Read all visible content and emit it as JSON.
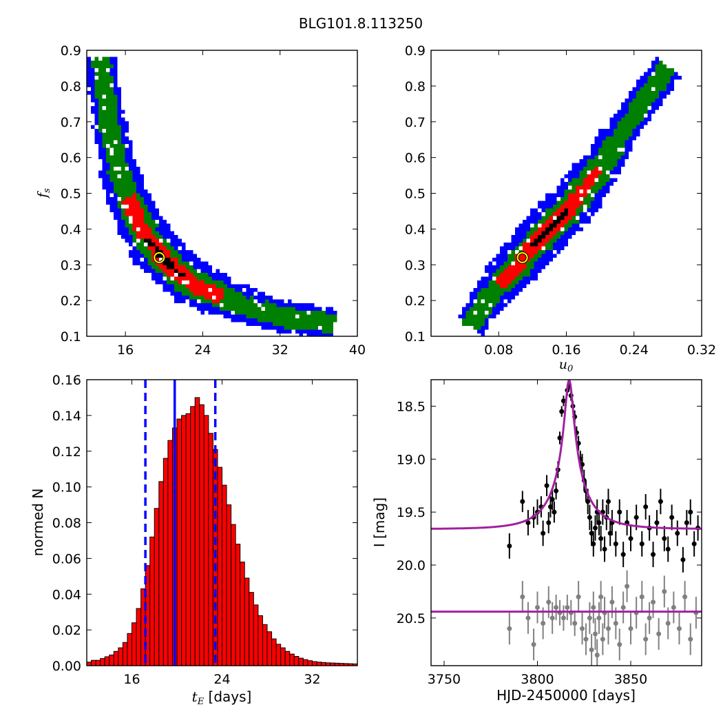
{
  "figure": {
    "title": "BLG101.8.113250"
  },
  "chart_data": [
    {
      "type": "heatmap",
      "panel": "top-left",
      "xlabel": "",
      "ylabel": "f_s",
      "xlim": [
        12,
        40
      ],
      "ylim": [
        0.1,
        0.9
      ],
      "xticks": [
        16,
        24,
        32,
        40
      ],
      "yticks": [
        0.1,
        0.2,
        0.3,
        0.4,
        0.5,
        0.6,
        0.7,
        0.8,
        0.9
      ],
      "levels": [
        "3-sigma",
        "2-sigma",
        "1-sigma",
        "best"
      ],
      "colors": {
        "outer": "#0000ff",
        "mid": "#008000",
        "inner": "#ff0000",
        "core": "#000000",
        "marker": "#ffff00"
      },
      "best_fit": {
        "x": 19.5,
        "y": 0.32
      },
      "ridge": [
        [
          13.2,
          0.88
        ],
        [
          14,
          0.72
        ],
        [
          15,
          0.58
        ],
        [
          16,
          0.49
        ],
        [
          17,
          0.43
        ],
        [
          18,
          0.38
        ],
        [
          19,
          0.345
        ],
        [
          20,
          0.315
        ],
        [
          21,
          0.29
        ],
        [
          22,
          0.268
        ],
        [
          23,
          0.25
        ],
        [
          24,
          0.235
        ],
        [
          26,
          0.212
        ],
        [
          28,
          0.192
        ],
        [
          30,
          0.175
        ],
        [
          32,
          0.162
        ],
        [
          34,
          0.152
        ],
        [
          36,
          0.144
        ],
        [
          37.5,
          0.139
        ]
      ]
    },
    {
      "type": "heatmap",
      "panel": "top-right",
      "xlabel": "u_0",
      "ylabel": "",
      "xlim": [
        0.0,
        0.32
      ],
      "ylim": [
        0.1,
        0.9
      ],
      "xticks": [
        0.08,
        0.16,
        0.24,
        0.32
      ],
      "yticks": [
        0.1,
        0.2,
        0.3,
        0.4,
        0.5,
        0.6,
        0.7,
        0.8,
        0.9
      ],
      "levels": [
        "3-sigma",
        "2-sigma",
        "1-sigma",
        "best"
      ],
      "colors": {
        "outer": "#0000ff",
        "mid": "#008000",
        "inner": "#ff0000",
        "core": "#000000",
        "marker": "#ffff00"
      },
      "best_fit": {
        "x": 0.108,
        "y": 0.32
      },
      "ridge": [
        [
          0.045,
          0.135
        ],
        [
          0.06,
          0.19
        ],
        [
          0.08,
          0.25
        ],
        [
          0.1,
          0.3
        ],
        [
          0.12,
          0.36
        ],
        [
          0.14,
          0.41
        ],
        [
          0.16,
          0.46
        ],
        [
          0.18,
          0.52
        ],
        [
          0.2,
          0.58
        ],
        [
          0.22,
          0.66
        ],
        [
          0.24,
          0.73
        ],
        [
          0.26,
          0.8
        ],
        [
          0.28,
          0.86
        ]
      ]
    },
    {
      "type": "bar",
      "panel": "bottom-left",
      "xlabel": "t_E [days]",
      "ylabel": "normed N",
      "xlim": [
        12,
        36
      ],
      "ylim": [
        0,
        0.16
      ],
      "xticks": [
        16,
        24,
        32
      ],
      "yticks": [
        0.0,
        0.02,
        0.04,
        0.06,
        0.08,
        0.1,
        0.12,
        0.14,
        0.16
      ],
      "bar_color": "#ff0000",
      "bin_width": 0.4,
      "bin_start": 12,
      "values": [
        0.002,
        0.003,
        0.003,
        0.004,
        0.005,
        0.006,
        0.008,
        0.01,
        0.013,
        0.018,
        0.024,
        0.032,
        0.043,
        0.056,
        0.072,
        0.088,
        0.103,
        0.116,
        0.126,
        0.133,
        0.138,
        0.14,
        0.141,
        0.145,
        0.15,
        0.146,
        0.14,
        0.13,
        0.121,
        0.111,
        0.101,
        0.09,
        0.079,
        0.068,
        0.058,
        0.049,
        0.041,
        0.034,
        0.028,
        0.023,
        0.019,
        0.015,
        0.012,
        0.01,
        0.008,
        0.0065,
        0.0052,
        0.0042,
        0.0034,
        0.0028,
        0.0023,
        0.002,
        0.0018,
        0.0016,
        0.0015,
        0.0014,
        0.0013,
        0.0012,
        0.0011,
        0.001
      ],
      "vlines": [
        {
          "x": 19.8,
          "style": "solid",
          "color": "#0000ff"
        },
        {
          "x": 17.2,
          "style": "dashed",
          "color": "#0000ff"
        },
        {
          "x": 23.4,
          "style": "dashed",
          "color": "#0000ff"
        }
      ]
    },
    {
      "type": "scatter",
      "panel": "bottom-right",
      "xlabel": "HJD-2450000 [days]",
      "ylabel": "I [mag]",
      "xlim": [
        3743,
        3888
      ],
      "ylim": [
        20.95,
        18.25
      ],
      "xticks": [
        3750,
        3800,
        3850
      ],
      "yticks": [
        18.5,
        19.0,
        19.5,
        20.0,
        20.5
      ],
      "model": {
        "t0": 3817,
        "tE": 19.8,
        "u0": 0.108,
        "fs": 0.32,
        "I_base": 19.66,
        "I_flat": 20.44,
        "color": "#a020a0"
      },
      "series": [
        {
          "color": "#000000",
          "points": [
            [
              3785,
              19.82,
              0.12
            ],
            [
              3792,
              19.4,
              0.1
            ],
            [
              3795,
              19.6,
              0.12
            ],
            [
              3798,
              19.55,
              0.1
            ],
            [
              3800,
              19.5,
              0.12
            ],
            [
              3802,
              19.45,
              0.1
            ],
            [
              3803,
              19.7,
              0.12
            ],
            [
              3805,
              19.25,
              0.1
            ],
            [
              3806,
              19.6,
              0.1
            ],
            [
              3807,
              19.45,
              0.1
            ],
            [
              3808,
              19.38,
              0.1
            ],
            [
              3809,
              19.5,
              0.1
            ],
            [
              3810,
              19.3,
              0.08
            ],
            [
              3811,
              19.1,
              0.08
            ],
            [
              3812,
              18.8,
              0.06
            ],
            [
              3813,
              18.55,
              0.05
            ],
            [
              3814,
              18.45,
              0.05
            ],
            [
              3816,
              18.35,
              0.05
            ],
            [
              3817,
              18.3,
              0.04
            ],
            [
              3818,
              18.4,
              0.05
            ],
            [
              3819,
              18.5,
              0.05
            ],
            [
              3820,
              18.6,
              0.06
            ],
            [
              3821,
              18.75,
              0.06
            ],
            [
              3822,
              18.85,
              0.07
            ],
            [
              3823,
              19.0,
              0.08
            ],
            [
              3824,
              19.05,
              0.1
            ],
            [
              3825,
              19.2,
              0.1
            ],
            [
              3826,
              19.3,
              0.1
            ],
            [
              3827,
              19.4,
              0.12
            ],
            [
              3828,
              19.55,
              0.12
            ],
            [
              3829,
              19.7,
              0.12
            ],
            [
              3830,
              19.8,
              0.12
            ],
            [
              3831,
              19.65,
              0.12
            ],
            [
              3832,
              19.5,
              0.12
            ],
            [
              3833,
              19.6,
              0.12
            ],
            [
              3834,
              19.75,
              0.12
            ],
            [
              3835,
              19.5,
              0.12
            ],
            [
              3836,
              19.85,
              0.12
            ],
            [
              3837,
              19.55,
              0.12
            ],
            [
              3838,
              19.4,
              0.12
            ],
            [
              3839,
              19.7,
              0.12
            ],
            [
              3840,
              19.6,
              0.12
            ],
            [
              3842,
              19.8,
              0.12
            ],
            [
              3844,
              19.5,
              0.12
            ],
            [
              3846,
              19.9,
              0.12
            ],
            [
              3848,
              19.6,
              0.12
            ],
            [
              3850,
              19.75,
              0.12
            ],
            [
              3853,
              19.55,
              0.12
            ],
            [
              3856,
              19.8,
              0.12
            ],
            [
              3858,
              19.45,
              0.12
            ],
            [
              3860,
              19.65,
              0.12
            ],
            [
              3862,
              19.9,
              0.12
            ],
            [
              3864,
              19.6,
              0.12
            ],
            [
              3866,
              19.4,
              0.12
            ],
            [
              3868,
              19.75,
              0.12
            ],
            [
              3870,
              19.85,
              0.12
            ],
            [
              3872,
              19.55,
              0.12
            ],
            [
              3875,
              19.7,
              0.12
            ],
            [
              3878,
              19.95,
              0.12
            ],
            [
              3880,
              19.6,
              0.12
            ],
            [
              3882,
              19.5,
              0.12
            ],
            [
              3884,
              19.8,
              0.12
            ],
            [
              3886,
              19.65,
              0.12
            ]
          ]
        },
        {
          "color": "#808080",
          "points": [
            [
              3785,
              20.6,
              0.15
            ],
            [
              3792,
              20.3,
              0.15
            ],
            [
              3795,
              20.5,
              0.15
            ],
            [
              3798,
              20.75,
              0.15
            ],
            [
              3800,
              20.4,
              0.15
            ],
            [
              3803,
              20.55,
              0.15
            ],
            [
              3806,
              20.35,
              0.15
            ],
            [
              3808,
              20.5,
              0.15
            ],
            [
              3810,
              20.4,
              0.12
            ],
            [
              3812,
              20.45,
              0.12
            ],
            [
              3814,
              20.5,
              0.12
            ],
            [
              3816,
              20.4,
              0.12
            ],
            [
              3818,
              20.45,
              0.12
            ],
            [
              3820,
              20.55,
              0.12
            ],
            [
              3822,
              20.3,
              0.15
            ],
            [
              3824,
              20.6,
              0.15
            ],
            [
              3826,
              20.7,
              0.15
            ],
            [
              3828,
              20.5,
              0.15
            ],
            [
              3829,
              20.8,
              0.15
            ],
            [
              3830,
              20.4,
              0.15
            ],
            [
              3831,
              20.65,
              0.15
            ],
            [
              3832,
              20.85,
              0.15
            ],
            [
              3833,
              20.5,
              0.15
            ],
            [
              3834,
              20.3,
              0.15
            ],
            [
              3835,
              20.7,
              0.15
            ],
            [
              3836,
              20.45,
              0.15
            ],
            [
              3838,
              20.6,
              0.15
            ],
            [
              3840,
              20.35,
              0.15
            ],
            [
              3842,
              20.55,
              0.15
            ],
            [
              3844,
              20.75,
              0.15
            ],
            [
              3846,
              20.4,
              0.15
            ],
            [
              3848,
              20.2,
              0.15
            ],
            [
              3850,
              20.6,
              0.15
            ],
            [
              3853,
              20.45,
              0.15
            ],
            [
              3856,
              20.3,
              0.15
            ],
            [
              3858,
              20.7,
              0.15
            ],
            [
              3860,
              20.5,
              0.15
            ],
            [
              3862,
              20.35,
              0.15
            ],
            [
              3865,
              20.65,
              0.15
            ],
            [
              3868,
              20.25,
              0.15
            ],
            [
              3870,
              20.55,
              0.15
            ],
            [
              3873,
              20.4,
              0.15
            ],
            [
              3876,
              20.6,
              0.15
            ],
            [
              3879,
              20.3,
              0.15
            ],
            [
              3882,
              20.7,
              0.15
            ],
            [
              3885,
              20.45,
              0.15
            ]
          ]
        }
      ]
    }
  ]
}
